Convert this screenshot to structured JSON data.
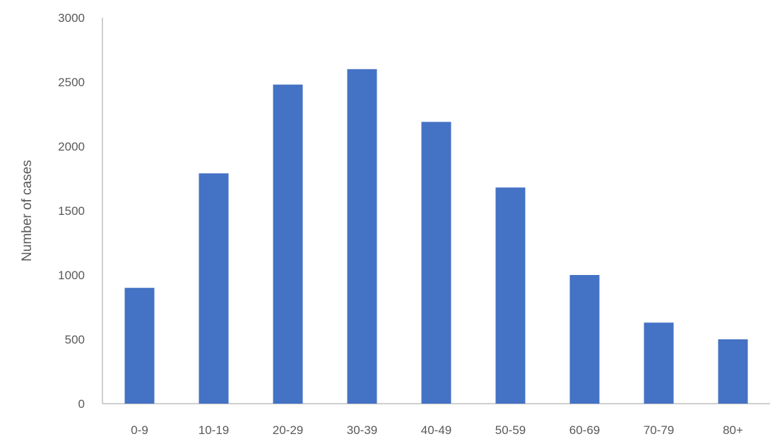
{
  "chart_data": {
    "type": "bar",
    "title": "",
    "xlabel": "",
    "ylabel": "Number of cases",
    "categories": [
      "0-9",
      "10-19",
      "20-29",
      "30-39",
      "40-49",
      "50-59",
      "60-69",
      "70-79",
      "80+"
    ],
    "values": [
      900,
      1790,
      2480,
      2600,
      2190,
      1680,
      1000,
      630,
      500
    ],
    "ylim": [
      0,
      3000
    ],
    "yticks": [
      "0",
      "500",
      "1000",
      "1500",
      "2000",
      "2500",
      "3000"
    ],
    "grid": false,
    "legend": "none",
    "bar_color": "#4472C4",
    "axis_color": "#BFBFBF",
    "text_color": "#595959"
  }
}
